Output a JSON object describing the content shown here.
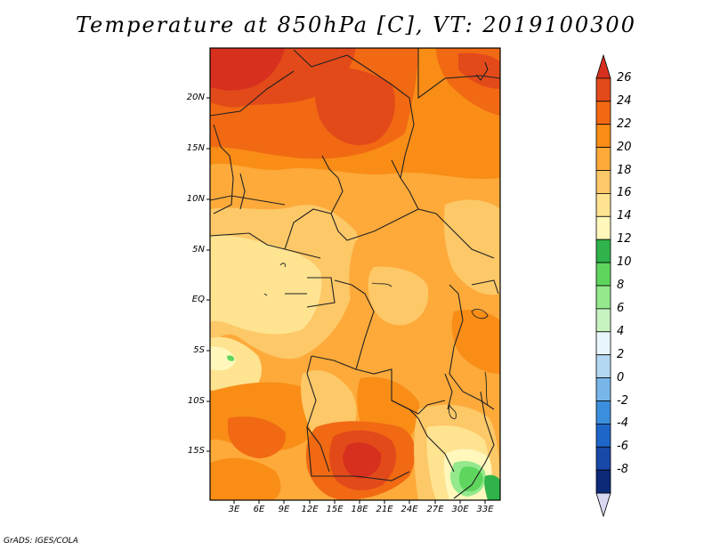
{
  "title": "Temperature at 850hPa [C], VT: 2019100300",
  "credit": "GrADS: IGES/COLA",
  "y_axis": {
    "ticks": [
      "20N",
      "15N",
      "10N",
      "5N",
      "EQ",
      "5S",
      "10S",
      "15S"
    ]
  },
  "x_axis": {
    "ticks": [
      "3E",
      "6E",
      "9E",
      "12E",
      "15E",
      "18E",
      "21E",
      "24E",
      "27E",
      "30E",
      "33E"
    ]
  },
  "colorbar": {
    "levels": [
      "26",
      "24",
      "22",
      "20",
      "18",
      "16",
      "14",
      "12",
      "10",
      "8",
      "6",
      "4",
      "2",
      "0",
      "-2",
      "-4",
      "-6",
      "-8"
    ],
    "colors": [
      "#d7301f",
      "#e34a1a",
      "#f16913",
      "#f98d16",
      "#fdaa3a",
      "#fdc867",
      "#fee391",
      "#fff7bc",
      "#2fb34a",
      "#5ed65e",
      "#94e98c",
      "#c7f3c0",
      "#e8f6fb",
      "#b4d8f2",
      "#78b6ea",
      "#3c8fdd",
      "#1f66c9",
      "#1848a8",
      "#0c2a78",
      "#d8d8f2"
    ]
  }
}
